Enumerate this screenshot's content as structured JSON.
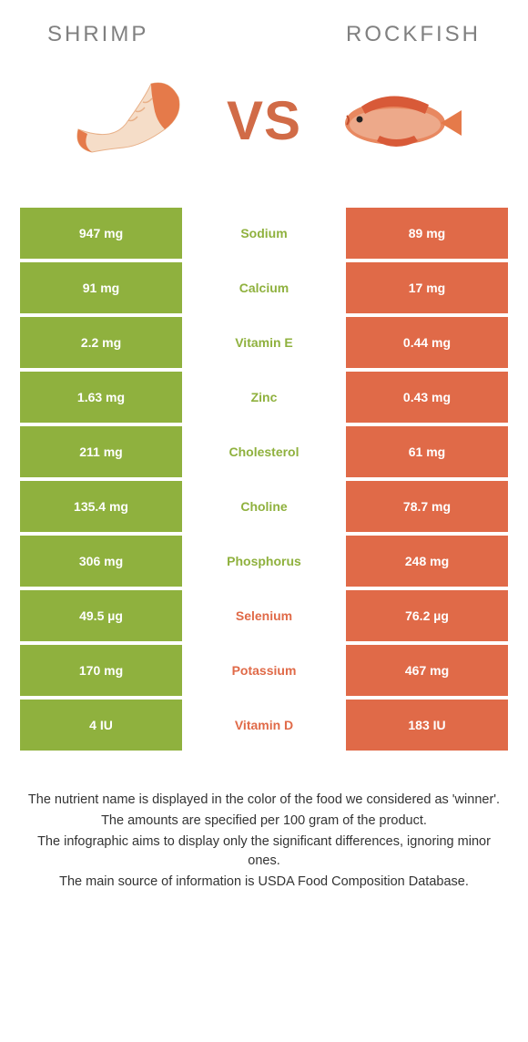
{
  "colors": {
    "green": "#8fb13e",
    "orange": "#e06a48",
    "title_gray": "#808080",
    "vs_color": "#d16b47",
    "shrimp_body": "#f5ddc8",
    "shrimp_tail": "#e57a4a",
    "rockfish_body": "#e88860",
    "rockfish_light": "#f2c9b4"
  },
  "header": {
    "left_title": "Shrimp",
    "right_title": "Rockfish",
    "vs_label": "VS"
  },
  "rows": [
    {
      "nutrient": "Sodium",
      "left": "947 mg",
      "right": "89 mg",
      "winner": "left"
    },
    {
      "nutrient": "Calcium",
      "left": "91 mg",
      "right": "17 mg",
      "winner": "left"
    },
    {
      "nutrient": "Vitamin E",
      "left": "2.2 mg",
      "right": "0.44 mg",
      "winner": "left"
    },
    {
      "nutrient": "Zinc",
      "left": "1.63 mg",
      "right": "0.43 mg",
      "winner": "left"
    },
    {
      "nutrient": "Cholesterol",
      "left": "211 mg",
      "right": "61 mg",
      "winner": "left"
    },
    {
      "nutrient": "Choline",
      "left": "135.4 mg",
      "right": "78.7 mg",
      "winner": "left"
    },
    {
      "nutrient": "Phosphorus",
      "left": "306 mg",
      "right": "248 mg",
      "winner": "left"
    },
    {
      "nutrient": "Selenium",
      "left": "49.5 µg",
      "right": "76.2 µg",
      "winner": "right"
    },
    {
      "nutrient": "Potassium",
      "left": "170 mg",
      "right": "467 mg",
      "winner": "right"
    },
    {
      "nutrient": "Vitamin D",
      "left": "4 IU",
      "right": "183 IU",
      "winner": "right"
    }
  ],
  "footnotes": [
    "The nutrient name is displayed in the color of the food we considered as 'winner'.",
    "The amounts are specified per 100 gram of the product.",
    "The infographic aims to display only the significant differences, ignoring minor ones.",
    "The main source of information is USDA Food Composition Database."
  ]
}
